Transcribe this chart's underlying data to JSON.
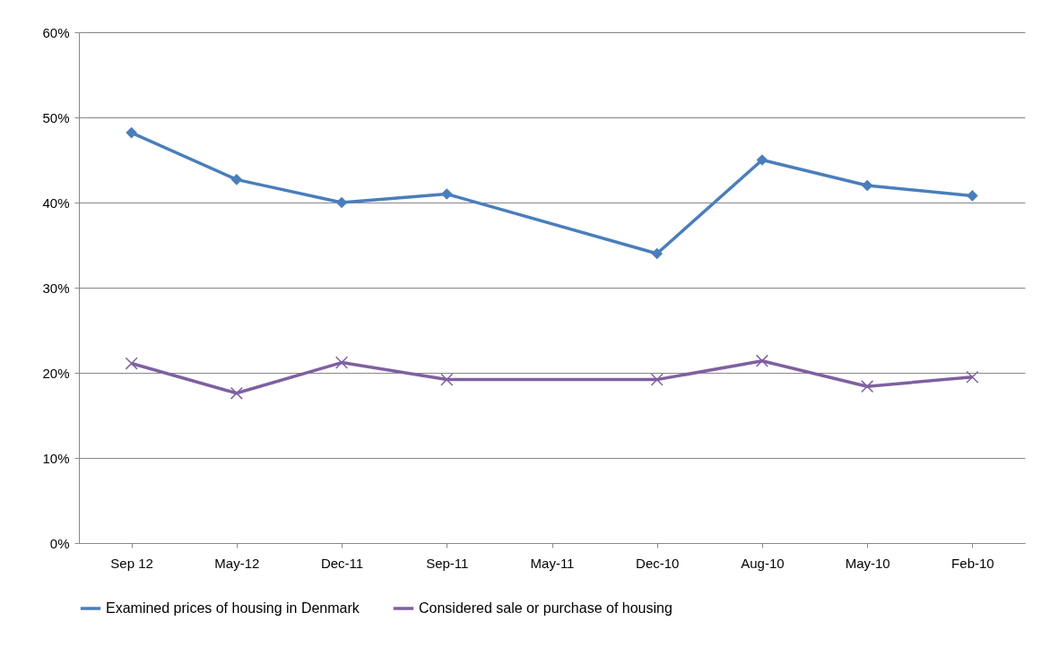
{
  "chart_data": {
    "type": "line",
    "categories": [
      "Sep 12",
      "May-12",
      "Dec-11",
      "Sep-11",
      "May-11",
      "Dec-10",
      "Aug-10",
      "May-10",
      "Feb-10"
    ],
    "series": [
      {
        "name": "Examined prices of housing in Denmark",
        "color": "#4a7ebb",
        "marker": "diamond",
        "values": [
          48.2,
          42.7,
          40,
          41,
          null,
          34,
          45,
          42,
          40.8
        ]
      },
      {
        "name": "Considered sale or purchase of housing",
        "color": "#7f60a0",
        "marker": "cross",
        "values": [
          21.1,
          17.6,
          21.2,
          19.2,
          null,
          19.2,
          21.4,
          18.4,
          19.5
        ]
      }
    ],
    "ylim": [
      0,
      60
    ],
    "yticks": [
      {
        "value": 0,
        "label": "0%"
      },
      {
        "value": 10,
        "label": "10%"
      },
      {
        "value": 20,
        "label": "20%"
      },
      {
        "value": 30,
        "label": "30%"
      },
      {
        "value": 40,
        "label": "40%"
      },
      {
        "value": 50,
        "label": "50%"
      },
      {
        "value": 60,
        "label": "60%"
      }
    ],
    "grid": "y",
    "legend": "bottom"
  }
}
